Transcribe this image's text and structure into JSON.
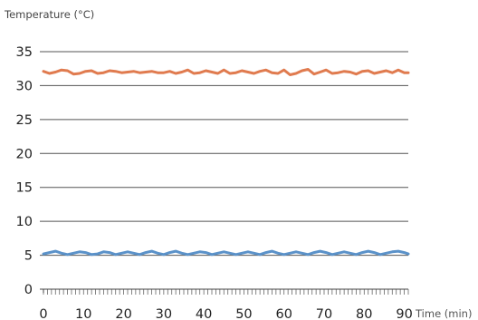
{
  "chart_data": {
    "type": "line",
    "title": "",
    "ylabel": "Temperature (°C)",
    "xlabel": "Time (min)",
    "xlim": [
      0,
      91
    ],
    "ylim": [
      0,
      35
    ],
    "x_ticks": [
      0,
      10,
      20,
      30,
      40,
      50,
      60,
      70,
      80,
      90
    ],
    "y_ticks": [
      0,
      5,
      10,
      15,
      20,
      25,
      30,
      35
    ],
    "x_minor_tick_step": 1,
    "grid": "horizontal",
    "legend": "none",
    "series": [
      {
        "color": "#e07b4f",
        "x": [
          0,
          1.5,
          3,
          4.5,
          6,
          7.5,
          9,
          10.5,
          12,
          13.5,
          15,
          16.5,
          18,
          19.5,
          21,
          22.5,
          24,
          25.5,
          27,
          28.5,
          30,
          31.5,
          33,
          34.5,
          36,
          37.5,
          39,
          40.5,
          42,
          43.5,
          45,
          46.5,
          48,
          49.5,
          51,
          52.5,
          54,
          55.5,
          57,
          58.5,
          60,
          61.5,
          63,
          64.5,
          66,
          67.5,
          69,
          70.5,
          72,
          73.5,
          75,
          76.5,
          78,
          79.5,
          81,
          82.5,
          84,
          85.5,
          87,
          88.5,
          90,
          91
        ],
        "values": [
          32.1,
          31.8,
          32.0,
          32.3,
          32.2,
          31.7,
          31.8,
          32.1,
          32.2,
          31.8,
          31.9,
          32.2,
          32.1,
          31.9,
          32.0,
          32.1,
          31.9,
          32.0,
          32.1,
          31.9,
          31.9,
          32.1,
          31.8,
          32.0,
          32.3,
          31.8,
          31.9,
          32.2,
          32.0,
          31.8,
          32.3,
          31.8,
          31.9,
          32.2,
          32.0,
          31.8,
          32.1,
          32.3,
          31.9,
          31.8,
          32.3,
          31.6,
          31.8,
          32.2,
          32.4,
          31.7,
          32.0,
          32.3,
          31.8,
          31.9,
          32.1,
          32.0,
          31.7,
          32.1,
          32.2,
          31.8,
          32.0,
          32.2,
          31.9,
          32.3,
          31.9,
          31.9
        ]
      },
      {
        "color": "#5b92c9",
        "x": [
          0,
          1.5,
          3,
          4.5,
          6,
          7.5,
          9,
          10.5,
          12,
          13.5,
          15,
          16.5,
          18,
          19.5,
          21,
          22.5,
          24,
          25.5,
          27,
          28.5,
          30,
          31.5,
          33,
          34.5,
          36,
          37.5,
          39,
          40.5,
          42,
          43.5,
          45,
          46.5,
          48,
          49.5,
          51,
          52.5,
          54,
          55.5,
          57,
          58.5,
          60,
          61.5,
          63,
          64.5,
          66,
          67.5,
          69,
          70.5,
          72,
          73.5,
          75,
          76.5,
          78,
          79.5,
          81,
          82.5,
          84,
          85.5,
          87,
          88.5,
          90,
          91
        ],
        "values": [
          5.2,
          5.4,
          5.6,
          5.3,
          5.1,
          5.3,
          5.5,
          5.4,
          5.1,
          5.2,
          5.5,
          5.4,
          5.1,
          5.3,
          5.5,
          5.3,
          5.1,
          5.4,
          5.6,
          5.3,
          5.1,
          5.4,
          5.6,
          5.3,
          5.1,
          5.3,
          5.5,
          5.4,
          5.1,
          5.3,
          5.5,
          5.3,
          5.1,
          5.3,
          5.5,
          5.3,
          5.1,
          5.4,
          5.6,
          5.3,
          5.1,
          5.3,
          5.5,
          5.3,
          5.1,
          5.4,
          5.6,
          5.4,
          5.1,
          5.3,
          5.5,
          5.3,
          5.1,
          5.4,
          5.6,
          5.4,
          5.1,
          5.3,
          5.5,
          5.6,
          5.4,
          5.2
        ]
      }
    ]
  }
}
